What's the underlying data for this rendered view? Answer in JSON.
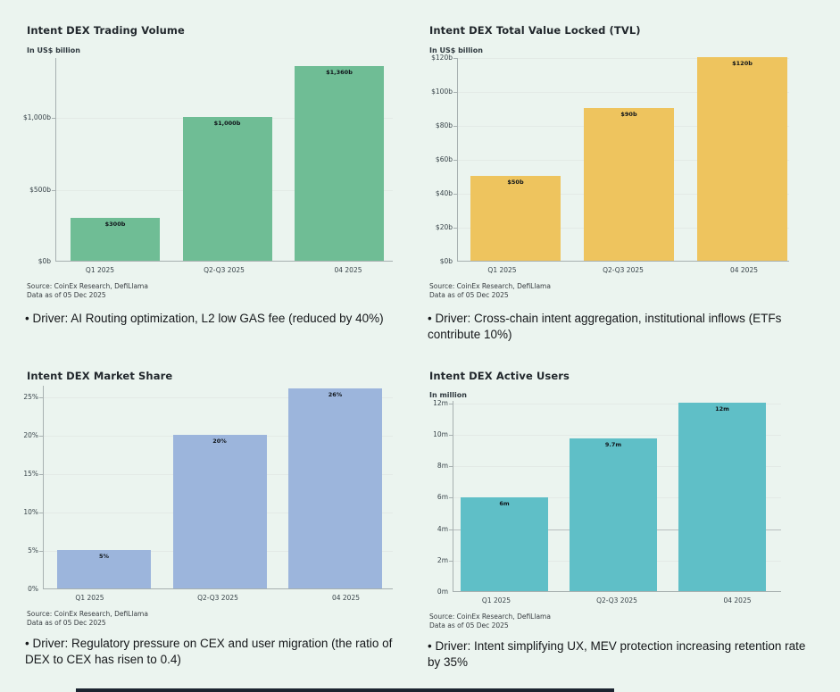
{
  "page": {
    "background": "#ebf4ef",
    "bottom_bar_color": "#1b2430"
  },
  "chart_data": [
    {
      "id": "intent-dex-trading-volume",
      "type": "bar",
      "title": "Intent DEX Trading Volume",
      "unit_label": "In US$ billion",
      "categories": [
        "Q1 2025",
        "Q2-Q3 2025",
        "04 2025"
      ],
      "values": [
        300,
        1000,
        1360
      ],
      "bar_labels": [
        "$300b",
        "$1,000b",
        "$1,360b"
      ],
      "bar_color": "#6fbd95",
      "ylim": [
        0,
        1420
      ],
      "yticks": [
        {
          "value": 0,
          "label": "$0b"
        },
        {
          "value": 500,
          "label": "$500b"
        },
        {
          "value": 1000,
          "label": "$1,000b"
        }
      ],
      "grid": true,
      "legend": "none",
      "source_line1": "Source: CoinEx Research, DefiLlama",
      "source_line2": "Data as of 05 Dec 2025",
      "driver": "• Driver: AI Routing optimization, L2 low GAS fee (reduced by 40%)"
    },
    {
      "id": "intent-dex-total-value-locked",
      "type": "bar",
      "title": "Intent DEX Total Value Locked (TVL)",
      "unit_label": "In US$ billion",
      "categories": [
        "Q1 2025",
        "Q2-Q3 2025",
        "04 2025"
      ],
      "values": [
        50,
        90,
        120
      ],
      "bar_labels": [
        "$50b",
        "$90b",
        "$120b"
      ],
      "bar_color": "#eec45e",
      "ylim": [
        0,
        120
      ],
      "yticks": [
        {
          "value": 0,
          "label": "$0b"
        },
        {
          "value": 20,
          "label": "$20b"
        },
        {
          "value": 40,
          "label": "$40b"
        },
        {
          "value": 60,
          "label": "$60b"
        },
        {
          "value": 80,
          "label": "$80b"
        },
        {
          "value": 100,
          "label": "$100b"
        },
        {
          "value": 120,
          "label": "$120b"
        }
      ],
      "grid": true,
      "legend": "none",
      "source_line1": "Source: CoinEx Research, DefiLlama",
      "source_line2": "Data as of 05 Dec 2025",
      "driver": "• Driver: Cross-chain intent aggregation, institutional inflows (ETFs contribute 10%)"
    },
    {
      "id": "intent-dex-market-share",
      "type": "bar",
      "title": "Intent DEX Market Share",
      "unit_label": "",
      "categories": [
        "Q1 2025",
        "Q2-Q3 2025",
        "04 2025"
      ],
      "values": [
        5,
        20,
        26
      ],
      "bar_labels": [
        "5%",
        "20%",
        "26%"
      ],
      "bar_color": "#9cb5dc",
      "ylim": [
        0,
        26.5
      ],
      "yticks": [
        {
          "value": 0,
          "label": "0%"
        },
        {
          "value": 5,
          "label": "5%"
        },
        {
          "value": 10,
          "label": "10%"
        },
        {
          "value": 15,
          "label": "15%"
        },
        {
          "value": 20,
          "label": "20%"
        },
        {
          "value": 25,
          "label": "25%"
        }
      ],
      "grid": true,
      "legend": "none",
      "source_line1": "Source: CoinEx Research, DefiLlama",
      "source_line2": "Data as of 05 Dec 2025",
      "driver": "• Driver: Regulatory pressure on CEX and user migration (the ratio of DEX to CEX has risen to 0.4)"
    },
    {
      "id": "intent-dex-active-users",
      "type": "bar",
      "title": "Intent DEX Active Users",
      "unit_label": "In million",
      "categories": [
        "Q1 2025",
        "Q2-Q3 2025",
        "04 2025"
      ],
      "values": [
        6,
        9.7,
        12
      ],
      "bar_labels": [
        "6m",
        "9.7m",
        "12m"
      ],
      "bar_color": "#5fbfc7",
      "ylim": [
        0,
        12.17
      ],
      "yticks": [
        {
          "value": 0,
          "label": "0m"
        },
        {
          "value": 2,
          "label": "2m"
        },
        {
          "value": 4,
          "label": "4m",
          "strong": true
        },
        {
          "value": 6,
          "label": "6m"
        },
        {
          "value": 8,
          "label": "8m"
        },
        {
          "value": 10,
          "label": "10m"
        },
        {
          "value": 12,
          "label": "12m"
        }
      ],
      "grid": true,
      "legend": "none",
      "source_line1": "Source: CoinEx Research, DefiLlama",
      "source_line2": "Data as of 05 Dec 2025",
      "driver": "• Driver: Intent simplifying UX, MEV protection increasing retention rate by 35%"
    }
  ]
}
